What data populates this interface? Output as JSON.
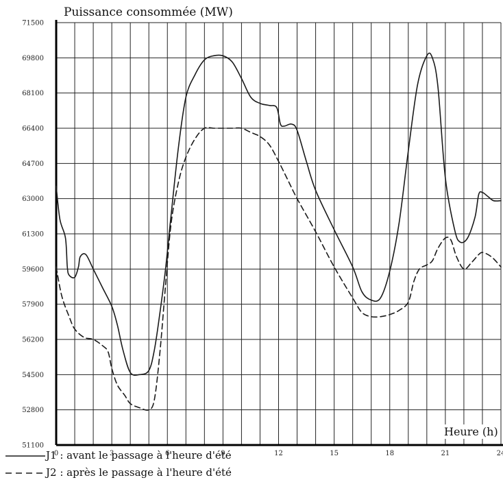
{
  "chart_data": {
    "type": "line",
    "title": "",
    "ylabel": "Puissance consommée (MW)",
    "xlabel": "Heure (h)",
    "xlim": [
      0,
      24
    ],
    "ylim": [
      51100,
      71500
    ],
    "x_ticks": [
      0,
      3,
      6,
      9,
      12,
      15,
      18,
      21,
      24
    ],
    "x_tick_labels": [
      "0",
      "3",
      "6",
      "9",
      "12",
      "15",
      "18",
      "21",
      "24"
    ],
    "y_ticks": [
      51100,
      52800,
      54500,
      56200,
      57900,
      59600,
      61300,
      63000,
      64700,
      66400,
      68100,
      69800,
      71500
    ],
    "y_tick_labels": [
      "51100",
      "52800",
      "54500",
      "56200",
      "57900",
      "59600",
      "61300",
      "63000",
      "64700",
      "66400",
      "68100",
      "69800",
      "71500"
    ],
    "grid": true,
    "legend_position": "bottom-left",
    "series": [
      {
        "name": "J1 : avant le passage à l'heure d'été",
        "style": "solid",
        "color": "#1a1a1a",
        "x": [
          0,
          0.2,
          0.5,
          0.6,
          0.7,
          1.0,
          1.2,
          1.3,
          1.6,
          2.0,
          2.5,
          3.0,
          3.3,
          3.6,
          4.0,
          4.5,
          5.0,
          5.3,
          5.6,
          5.9,
          6.2,
          6.6,
          7.0,
          7.5,
          8.0,
          8.5,
          9.0,
          9.5,
          10.0,
          10.5,
          11.0,
          11.5,
          11.9,
          12.1,
          12.3,
          12.7,
          13.0,
          13.5,
          14.0,
          15.0,
          16.0,
          16.5,
          17.0,
          17.5,
          18.0,
          18.5,
          19.0,
          19.5,
          20.0,
          20.3,
          20.6,
          21.0,
          21.5,
          21.8,
          22.2,
          22.6,
          22.8,
          23.0,
          23.3,
          23.6,
          24.0
        ],
        "y": [
          63600,
          62000,
          61100,
          59700,
          59300,
          59200,
          59700,
          60200,
          60300,
          59600,
          58700,
          57800,
          56900,
          55700,
          54600,
          54500,
          54700,
          55700,
          57500,
          59600,
          62200,
          65500,
          67900,
          69000,
          69700,
          69900,
          69900,
          69600,
          68800,
          67900,
          67600,
          67500,
          67400,
          66600,
          66500,
          66600,
          66300,
          64800,
          63400,
          61500,
          59700,
          58500,
          58100,
          58200,
          59500,
          61800,
          65300,
          68500,
          69900,
          69800,
          68400,
          64000,
          61500,
          60900,
          61100,
          62100,
          63200,
          63300,
          63100,
          62900,
          62900
        ]
      },
      {
        "name": "J2 : après le passage à l'heure d'été",
        "style": "dashed",
        "color": "#1a1a1a",
        "x": [
          0,
          0.3,
          0.7,
          1.0,
          1.5,
          2.0,
          2.5,
          2.8,
          3.0,
          3.3,
          3.7,
          4.0,
          4.5,
          5.0,
          5.3,
          5.6,
          5.9,
          6.2,
          6.6,
          7.0,
          7.5,
          8.0,
          8.5,
          9.0,
          9.5,
          10.0,
          10.5,
          11.0,
          11.5,
          12.0,
          12.5,
          13.0,
          14.0,
          15.0,
          16.0,
          16.5,
          17.0,
          17.5,
          18.0,
          18.5,
          19.0,
          19.3,
          19.6,
          20.0,
          20.3,
          20.6,
          21.0,
          21.3,
          21.6,
          22.0,
          22.4,
          22.8,
          23.0,
          23.3,
          23.6,
          24.0
        ],
        "y": [
          59700,
          58300,
          57300,
          56700,
          56300,
          56200,
          55900,
          55600,
          54800,
          54000,
          53500,
          53100,
          52900,
          52800,
          53300,
          55600,
          58800,
          61800,
          63800,
          65000,
          65900,
          66400,
          66400,
          66400,
          66400,
          66400,
          66200,
          66000,
          65600,
          64800,
          63900,
          63000,
          61400,
          59700,
          58200,
          57500,
          57300,
          57300,
          57400,
          57600,
          58000,
          59000,
          59600,
          59800,
          60000,
          60600,
          61100,
          61000,
          60200,
          59600,
          59900,
          60300,
          60400,
          60300,
          60100,
          59700
        ]
      }
    ]
  }
}
